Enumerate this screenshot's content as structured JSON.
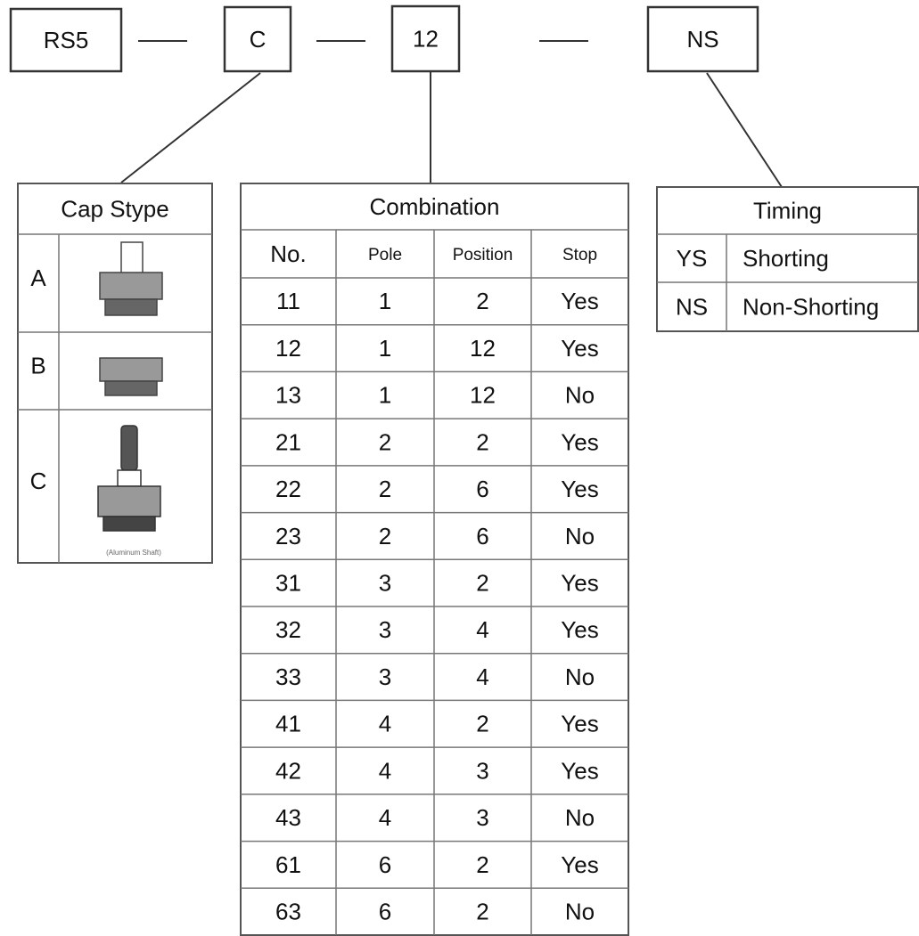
{
  "part_code": [
    "RS5",
    "C",
    "12",
    "NS"
  ],
  "cap_type": {
    "title": "Cap Stype",
    "rows": [
      {
        "label": "A"
      },
      {
        "label": "B"
      },
      {
        "label": "C",
        "caption": "(Aluminum Shaft)"
      }
    ]
  },
  "combination": {
    "title": "Combination",
    "headers": [
      "No.",
      "Pole",
      "Position",
      "Stop"
    ],
    "rows": [
      [
        "11",
        "1",
        "2",
        "Yes"
      ],
      [
        "12",
        "1",
        "12",
        "Yes"
      ],
      [
        "13",
        "1",
        "12",
        "No"
      ],
      [
        "21",
        "2",
        "2",
        "Yes"
      ],
      [
        "22",
        "2",
        "6",
        "Yes"
      ],
      [
        "23",
        "2",
        "6",
        "No"
      ],
      [
        "31",
        "3",
        "2",
        "Yes"
      ],
      [
        "32",
        "3",
        "4",
        "Yes"
      ],
      [
        "33",
        "3",
        "4",
        "No"
      ],
      [
        "41",
        "4",
        "2",
        "Yes"
      ],
      [
        "42",
        "4",
        "3",
        "Yes"
      ],
      [
        "43",
        "4",
        "3",
        "No"
      ],
      [
        "61",
        "6",
        "2",
        "Yes"
      ],
      [
        "63",
        "6",
        "2",
        "No"
      ]
    ]
  },
  "timing": {
    "title": "Timing",
    "rows": [
      [
        "YS",
        "Shorting"
      ],
      [
        "NS",
        "Non-Shorting"
      ]
    ]
  }
}
